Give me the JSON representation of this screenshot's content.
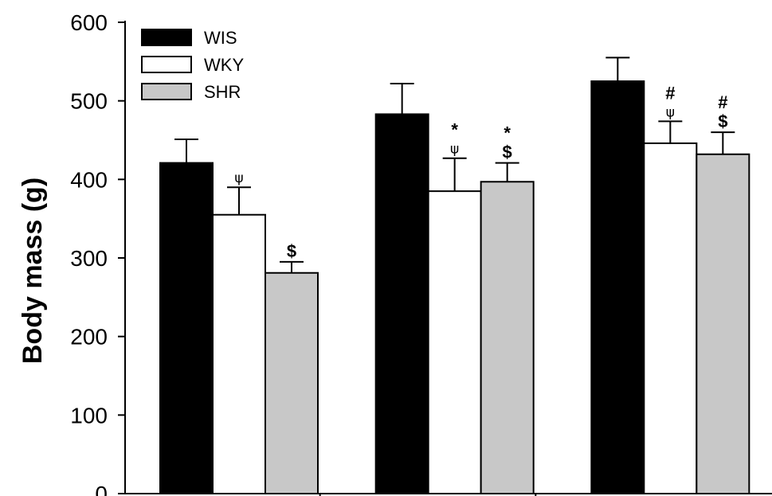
{
  "chart_data": {
    "type": "bar",
    "title": "",
    "xlabel": "",
    "ylabel": "Body mass (g)",
    "ylim": [
      0,
      600
    ],
    "yticks": [
      "0",
      "100",
      "200",
      "300",
      "400",
      "500",
      "600"
    ],
    "categories": [
      "",
      "",
      ""
    ],
    "legend_position": "top-left",
    "series": [
      {
        "name": "WIS",
        "color": "#000000",
        "values": [
          421,
          483,
          525
        ],
        "errors": [
          30,
          39,
          30
        ],
        "annotations": [
          [],
          [],
          []
        ]
      },
      {
        "name": "WKY",
        "color": "#ffffff",
        "values": [
          355,
          385,
          446
        ],
        "errors": [
          35,
          42,
          28
        ],
        "annotations": [
          [
            "ψ"
          ],
          [
            "*",
            "ψ"
          ],
          [
            "#",
            "ψ"
          ]
        ]
      },
      {
        "name": "SHR",
        "color": "#c8c8c8",
        "values": [
          281,
          397,
          432
        ],
        "errors": [
          14,
          24,
          28
        ],
        "annotations": [
          [
            "$"
          ],
          [
            "*",
            "$"
          ],
          [
            "#",
            "$"
          ]
        ]
      }
    ]
  }
}
